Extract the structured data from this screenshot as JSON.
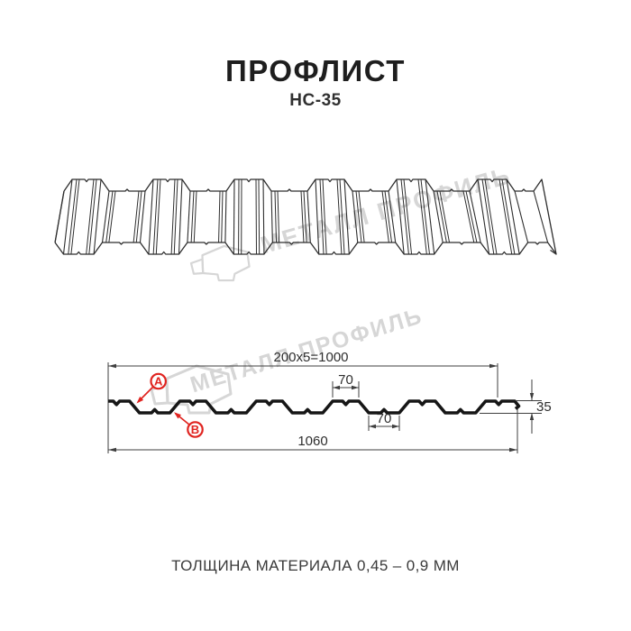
{
  "header": {
    "title": "ПРОФЛИСТ",
    "subtitle": "НС-35"
  },
  "watermark": {
    "text": "МЕТАЛЛ ПРОФИЛЬ",
    "logo_icon": "metal-profile-logo-icon"
  },
  "dimensions": {
    "coverage_width": "200x5=1000",
    "rib_top_width": "70",
    "rib_bottom_width": "70",
    "profile_height": "35",
    "overall_width": "1060"
  },
  "markers": {
    "a": "А",
    "b": "В"
  },
  "footer": {
    "thickness_note": "ТОЛЩИНА МАТЕРИАЛА 0,45 – 0,9 ММ"
  },
  "colors": {
    "line_dark": "#2e2e2e",
    "profile_stroke": "#161616",
    "dimension_line": "#3f3f3f",
    "accent_red": "#e02420",
    "watermark_gray": "#d6d6d6",
    "text_dark": "#1e1e1e"
  }
}
